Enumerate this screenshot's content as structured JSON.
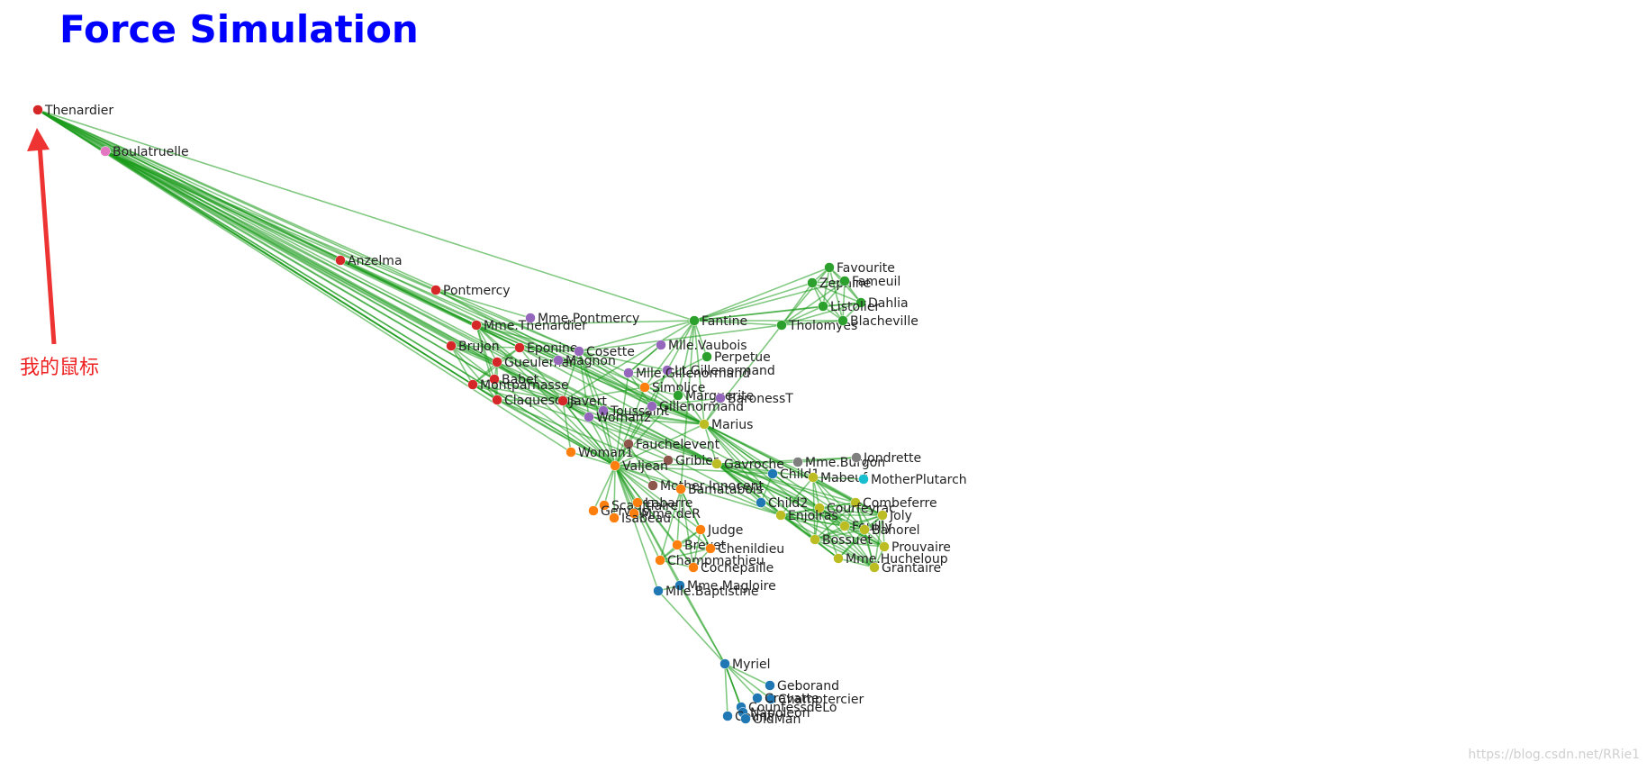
{
  "title": "Force Simulation",
  "annotation": {
    "text": "我的鼠标",
    "color": "#ee3333"
  },
  "watermark": "https://blog.csdn.net/RRie1",
  "colors": {
    "link": "#1a9a1a",
    "title": "#0000ff",
    "groups": [
      "#1f77b4",
      "#ff7f0e",
      "#2ca02c",
      "#d62728",
      "#9467bd",
      "#8c564b",
      "#e377c2",
      "#7f7f7f",
      "#bcbd22",
      "#17becf"
    ]
  },
  "nodes": [
    {
      "id": "Thenardier",
      "group": 3
    },
    {
      "id": "Boulatruelle",
      "group": 6
    },
    {
      "id": "Anzelma",
      "group": 3
    },
    {
      "id": "Pontmercy",
      "group": 3
    },
    {
      "id": "Mme.Thenardier",
      "group": 3
    },
    {
      "id": "Mme.Pontmercy",
      "group": 4
    },
    {
      "id": "Brujon",
      "group": 3
    },
    {
      "id": "Eponine",
      "group": 3
    },
    {
      "id": "Cosette",
      "group": 4
    },
    {
      "id": "Gueulemer",
      "group": 3
    },
    {
      "id": "Magnon",
      "group": 4
    },
    {
      "id": "Babet",
      "group": 3
    },
    {
      "id": "Montparnasse",
      "group": 3
    },
    {
      "id": "Claquesous",
      "group": 3
    },
    {
      "id": "Javert",
      "group": 3
    },
    {
      "id": "Toussaint",
      "group": 4
    },
    {
      "id": "Woman2",
      "group": 4
    },
    {
      "id": "Fantine",
      "group": 2
    },
    {
      "id": "Favourite",
      "group": 2
    },
    {
      "id": "Zephine",
      "group": 2
    },
    {
      "id": "Fameuil",
      "group": 2
    },
    {
      "id": "Dahlia",
      "group": 2
    },
    {
      "id": "Listolier",
      "group": 2
    },
    {
      "id": "Tholomyes",
      "group": 2
    },
    {
      "id": "Blacheville",
      "group": 2
    },
    {
      "id": "Mlle.Vaubois",
      "group": 4
    },
    {
      "id": "Perpetue",
      "group": 2
    },
    {
      "id": "Lt.Gillenormand",
      "group": 4
    },
    {
      "id": "Mlle.Gillenormand",
      "group": 4
    },
    {
      "id": "Simplice",
      "group": 1
    },
    {
      "id": "Marguerite",
      "group": 2
    },
    {
      "id": "BaronessT",
      "group": 4
    },
    {
      "id": "Gillenormand",
      "group": 4
    },
    {
      "id": "Marius",
      "group": 8
    },
    {
      "id": "Fauchelevent",
      "group": 5
    },
    {
      "id": "Woman1",
      "group": 1
    },
    {
      "id": "Gribier",
      "group": 5
    },
    {
      "id": "Valjean",
      "group": 1
    },
    {
      "id": "Gavroche",
      "group": 8
    },
    {
      "id": "Mme.Burgon",
      "group": 7
    },
    {
      "id": "Jondrette",
      "group": 7
    },
    {
      "id": "Child1",
      "group": 0
    },
    {
      "id": "Mabeuf",
      "group": 8
    },
    {
      "id": "MotherPlutarch",
      "group": 9
    },
    {
      "id": "Mother Innocent",
      "group": 5
    },
    {
      "id": "Bamatabois",
      "group": 1
    },
    {
      "id": "Child2",
      "group": 0
    },
    {
      "id": "Combeferre",
      "group": 8
    },
    {
      "id": "Courfeyrac",
      "group": 8
    },
    {
      "id": "Enjolras",
      "group": 8
    },
    {
      "id": "Joly",
      "group": 8
    },
    {
      "id": "Feuilly",
      "group": 8
    },
    {
      "id": "Bahorel",
      "group": 8
    },
    {
      "id": "Bossuet",
      "group": 8
    },
    {
      "id": "Prouvaire",
      "group": 8
    },
    {
      "id": "Mme.Hucheloup",
      "group": 8
    },
    {
      "id": "Grantaire",
      "group": 8
    },
    {
      "id": "Scaufflaire",
      "group": 1
    },
    {
      "id": "Labarre",
      "group": 1
    },
    {
      "id": "Gervais",
      "group": 1
    },
    {
      "id": "Mme.deR",
      "group": 1
    },
    {
      "id": "Isabeau",
      "group": 1
    },
    {
      "id": "Judge",
      "group": 1
    },
    {
      "id": "Brevet",
      "group": 1
    },
    {
      "id": "Chenildieu",
      "group": 1
    },
    {
      "id": "Champmathieu",
      "group": 1
    },
    {
      "id": "Cochepaille",
      "group": 1
    },
    {
      "id": "Mme.Magloire",
      "group": 0
    },
    {
      "id": "Mlle.Baptistine",
      "group": 0
    },
    {
      "id": "Myriel",
      "group": 0
    },
    {
      "id": "Geborand",
      "group": 0
    },
    {
      "id": "Champtercier",
      "group": 0
    },
    {
      "id": "Cravatte",
      "group": 0
    },
    {
      "id": "CountessdeLo",
      "group": 0
    },
    {
      "id": "Napoleon",
      "group": 0
    },
    {
      "id": "Count",
      "group": 0
    },
    {
      "id": "OldMan",
      "group": 0
    }
  ],
  "links": [
    [
      "Thenardier",
      "Boulatruelle"
    ],
    [
      "Thenardier",
      "Anzelma"
    ],
    [
      "Thenardier",
      "Mme.Thenardier"
    ],
    [
      "Thenardier",
      "Brujon"
    ],
    [
      "Thenardier",
      "Eponine"
    ],
    [
      "Thenardier",
      "Gueulemer"
    ],
    [
      "Thenardier",
      "Babet"
    ],
    [
      "Thenardier",
      "Montparnasse"
    ],
    [
      "Thenardier",
      "Claquesous"
    ],
    [
      "Thenardier",
      "Javert"
    ],
    [
      "Thenardier",
      "Cosette"
    ],
    [
      "Thenardier",
      "Valjean"
    ],
    [
      "Thenardier",
      "Marius"
    ],
    [
      "Thenardier",
      "Fantine"
    ],
    [
      "Thenardier",
      "Pontmercy"
    ],
    [
      "Thenardier",
      "Gavroche"
    ],
    [
      "Thenardier",
      "Woman1"
    ],
    [
      "Thenardier",
      "Toussaint"
    ],
    [
      "Boulatruelle",
      "Mme.Thenardier"
    ],
    [
      "Boulatruelle",
      "Brujon"
    ],
    [
      "Boulatruelle",
      "Eponine"
    ],
    [
      "Boulatruelle",
      "Gueulemer"
    ],
    [
      "Boulatruelle",
      "Montparnasse"
    ],
    [
      "Boulatruelle",
      "Claquesous"
    ],
    [
      "Boulatruelle",
      "Javert"
    ],
    [
      "Boulatruelle",
      "Valjean"
    ],
    [
      "Boulatruelle",
      "Babet"
    ],
    [
      "Boulatruelle",
      "Cosette"
    ],
    [
      "Boulatruelle",
      "Marius"
    ],
    [
      "Boulatruelle",
      "Woman2"
    ],
    [
      "Boulatruelle",
      "Gavroche"
    ],
    [
      "Boulatruelle",
      "Simplice"
    ],
    [
      "Anzelma",
      "Mme.Thenardier"
    ],
    [
      "Anzelma",
      "Eponine"
    ],
    [
      "Anzelma",
      "Marius"
    ],
    [
      "Pontmercy",
      "Mme.Pontmercy"
    ],
    [
      "Pontmercy",
      "Marius"
    ],
    [
      "Pontmercy",
      "Gillenormand"
    ],
    [
      "Mme.Thenardier",
      "Eponine"
    ],
    [
      "Mme.Thenardier",
      "Valjean"
    ],
    [
      "Mme.Thenardier",
      "Javert"
    ],
    [
      "Mme.Thenardier",
      "Cosette"
    ],
    [
      "Mme.Thenardier",
      "Fantine"
    ],
    [
      "Mme.Thenardier",
      "Babet"
    ],
    [
      "Mme.Thenardier",
      "Gueulemer"
    ],
    [
      "Mme.Thenardier",
      "Claquesous"
    ],
    [
      "Mme.Thenardier",
      "Magnon"
    ],
    [
      "Brujon",
      "Gueulemer"
    ],
    [
      "Brujon",
      "Babet"
    ],
    [
      "Brujon",
      "Montparnasse"
    ],
    [
      "Brujon",
      "Claquesous"
    ],
    [
      "Brujon",
      "Eponine"
    ],
    [
      "Brujon",
      "Gavroche"
    ],
    [
      "Eponine",
      "Marius"
    ],
    [
      "Eponine",
      "Cosette"
    ],
    [
      "Eponine",
      "Valjean"
    ],
    [
      "Eponine",
      "Gueulemer"
    ],
    [
      "Eponine",
      "Montparnasse"
    ],
    [
      "Eponine",
      "Courfeyrac"
    ],
    [
      "Gueulemer",
      "Babet"
    ],
    [
      "Gueulemer",
      "Montparnasse"
    ],
    [
      "Gueulemer",
      "Claquesous"
    ],
    [
      "Gueulemer",
      "Javert"
    ],
    [
      "Gueulemer",
      "Valjean"
    ],
    [
      "Gueulemer",
      "Gavroche"
    ],
    [
      "Babet",
      "Montparnasse"
    ],
    [
      "Babet",
      "Claquesous"
    ],
    [
      "Babet",
      "Javert"
    ],
    [
      "Babet",
      "Valjean"
    ],
    [
      "Babet",
      "Gavroche"
    ],
    [
      "Montparnasse",
      "Claquesous"
    ],
    [
      "Montparnasse",
      "Javert"
    ],
    [
      "Montparnasse",
      "Valjean"
    ],
    [
      "Montparnasse",
      "Gavroche"
    ],
    [
      "Claquesous",
      "Javert"
    ],
    [
      "Claquesous",
      "Valjean"
    ],
    [
      "Claquesous",
      "Enjolras"
    ],
    [
      "Javert",
      "Valjean"
    ],
    [
      "Javert",
      "Fantine"
    ],
    [
      "Javert",
      "Simplice"
    ],
    [
      "Javert",
      "Woman1"
    ],
    [
      "Javert",
      "Fauchelevent"
    ],
    [
      "Javert",
      "Marius"
    ],
    [
      "Javert",
      "Enjolras"
    ],
    [
      "Javert",
      "Gavroche"
    ],
    [
      "Javert",
      "Toussaint"
    ],
    [
      "Javert",
      "Bamatabois"
    ],
    [
      "Javert",
      "Cosette"
    ],
    [
      "Cosette",
      "Valjean"
    ],
    [
      "Cosette",
      "Marius"
    ],
    [
      "Cosette",
      "Woman2"
    ],
    [
      "Cosette",
      "Gillenormand"
    ],
    [
      "Cosette",
      "Mlle.Gillenormand"
    ],
    [
      "Cosette",
      "Lt.Gillenormand"
    ],
    [
      "Cosette",
      "Toussaint"
    ],
    [
      "Cosette",
      "Tholomyes"
    ],
    [
      "Cosette",
      "Fantine"
    ],
    [
      "Magnon",
      "Mme.Thenardier"
    ],
    [
      "Magnon",
      "Gillenormand"
    ],
    [
      "Fantine",
      "Favourite"
    ],
    [
      "Fantine",
      "Zephine"
    ],
    [
      "Fantine",
      "Fameuil"
    ],
    [
      "Fantine",
      "Dahlia"
    ],
    [
      "Fantine",
      "Listolier"
    ],
    [
      "Fantine",
      "Tholomyes"
    ],
    [
      "Fantine",
      "Blacheville"
    ],
    [
      "Fantine",
      "Marguerite"
    ],
    [
      "Fantine",
      "Valjean"
    ],
    [
      "Fantine",
      "Simplice"
    ],
    [
      "Fantine",
      "Bamatabois"
    ],
    [
      "Fantine",
      "Perpetue"
    ],
    [
      "Tholomyes",
      "Favourite"
    ],
    [
      "Tholomyes",
      "Zephine"
    ],
    [
      "Tholomyes",
      "Fameuil"
    ],
    [
      "Tholomyes",
      "Dahlia"
    ],
    [
      "Tholomyes",
      "Listolier"
    ],
    [
      "Tholomyes",
      "Blacheville"
    ],
    [
      "Favourite",
      "Zephine"
    ],
    [
      "Favourite",
      "Fameuil"
    ],
    [
      "Favourite",
      "Dahlia"
    ],
    [
      "Favourite",
      "Listolier"
    ],
    [
      "Favourite",
      "Blacheville"
    ],
    [
      "Zephine",
      "Fameuil"
    ],
    [
      "Zephine",
      "Dahlia"
    ],
    [
      "Zephine",
      "Listolier"
    ],
    [
      "Zephine",
      "Blacheville"
    ],
    [
      "Fameuil",
      "Dahlia"
    ],
    [
      "Fameuil",
      "Listolier"
    ],
    [
      "Fameuil",
      "Blacheville"
    ],
    [
      "Dahlia",
      "Listolier"
    ],
    [
      "Dahlia",
      "Blacheville"
    ],
    [
      "Listolier",
      "Blacheville"
    ],
    [
      "Mlle.Vaubois",
      "Mlle.Gillenormand"
    ],
    [
      "Perpetue",
      "Simplice"
    ],
    [
      "Lt.Gillenormand",
      "Mlle.Gillenormand"
    ],
    [
      "Lt.Gillenormand",
      "Gillenormand"
    ],
    [
      "Lt.Gillenormand",
      "Marius"
    ],
    [
      "Mlle.Gillenormand",
      "Gillenormand"
    ],
    [
      "Mlle.Gillenormand",
      "Marius"
    ],
    [
      "Mlle.Gillenormand",
      "Valjean"
    ],
    [
      "Mlle.Gillenormand",
      "Mlle.Vaubois"
    ],
    [
      "Simplice",
      "Valjean"
    ],
    [
      "Simplice",
      "Marguerite"
    ],
    [
      "Marguerite",
      "Valjean"
    ],
    [
      "BaronessT",
      "Gillenormand"
    ],
    [
      "BaronessT",
      "Marius"
    ],
    [
      "Gillenormand",
      "Marius"
    ],
    [
      "Gillenormand",
      "Valjean"
    ],
    [
      "Marius",
      "Valjean"
    ],
    [
      "Marius",
      "Gavroche"
    ],
    [
      "Marius",
      "Mabeuf"
    ],
    [
      "Marius",
      "Enjolras"
    ],
    [
      "Marius",
      "Combeferre"
    ],
    [
      "Marius",
      "Courfeyrac"
    ],
    [
      "Marius",
      "Feuilly"
    ],
    [
      "Marius",
      "Bahorel"
    ],
    [
      "Marius",
      "Bossuet"
    ],
    [
      "Marius",
      "Joly"
    ],
    [
      "Marius",
      "Grantaire"
    ],
    [
      "Marius",
      "Woman2"
    ],
    [
      "Marius",
      "Toussaint"
    ],
    [
      "Marius",
      "Tholomyes"
    ],
    [
      "Marius",
      "Fantine"
    ],
    [
      "Fauchelevent",
      "Valjean"
    ],
    [
      "Fauchelevent",
      "Mother Innocent"
    ],
    [
      "Fauchelevent",
      "Gribier"
    ],
    [
      "Woman1",
      "Valjean"
    ],
    [
      "Woman2",
      "Valjean"
    ],
    [
      "Toussaint",
      "Valjean"
    ],
    [
      "Valjean",
      "Mme.Magloire"
    ],
    [
      "Valjean",
      "Mlle.Baptistine"
    ],
    [
      "Valjean",
      "Myriel"
    ],
    [
      "Valjean",
      "Labarre"
    ],
    [
      "Valjean",
      "Mme.deR"
    ],
    [
      "Valjean",
      "Isabeau"
    ],
    [
      "Valjean",
      "Gervais"
    ],
    [
      "Valjean",
      "Bamatabois"
    ],
    [
      "Valjean",
      "Judge"
    ],
    [
      "Valjean",
      "Champmathieu"
    ],
    [
      "Valjean",
      "Brevet"
    ],
    [
      "Valjean",
      "Chenildieu"
    ],
    [
      "Valjean",
      "Cochepaille"
    ],
    [
      "Valjean",
      "Scaufflaire"
    ],
    [
      "Valjean",
      "Gavroche"
    ],
    [
      "Valjean",
      "Enjolras"
    ],
    [
      "Valjean",
      "Mother Innocent"
    ],
    [
      "Valjean",
      "Child1"
    ],
    [
      "Valjean",
      "Gribier"
    ],
    [
      "Gavroche",
      "Mme.Burgon"
    ],
    [
      "Gavroche",
      "Jondrette"
    ],
    [
      "Gavroche",
      "Child1"
    ],
    [
      "Gavroche",
      "Child2"
    ],
    [
      "Gavroche",
      "Mabeuf"
    ],
    [
      "Gavroche",
      "Enjolras"
    ],
    [
      "Gavroche",
      "Combeferre"
    ],
    [
      "Gavroche",
      "Courfeyrac"
    ],
    [
      "Gavroche",
      "Feuilly"
    ],
    [
      "Gavroche",
      "Bahorel"
    ],
    [
      "Gavroche",
      "Bossuet"
    ],
    [
      "Gavroche",
      "Joly"
    ],
    [
      "Gavroche",
      "Grantaire"
    ],
    [
      "Gavroche",
      "Prouvaire"
    ],
    [
      "Gavroche",
      "Mme.Hucheloup"
    ],
    [
      "Mme.Burgon",
      "Jondrette"
    ],
    [
      "Child1",
      "Child2"
    ],
    [
      "Mabeuf",
      "MotherPlutarch"
    ],
    [
      "Mabeuf",
      "Enjolras"
    ],
    [
      "Mabeuf",
      "Combeferre"
    ],
    [
      "Mabeuf",
      "Courfeyrac"
    ],
    [
      "Mabeuf",
      "Feuilly"
    ],
    [
      "Mabeuf",
      "Bahorel"
    ],
    [
      "Mabeuf",
      "Bossuet"
    ],
    [
      "Mabeuf",
      "Joly"
    ],
    [
      "Enjolras",
      "Combeferre"
    ],
    [
      "Enjolras",
      "Courfeyrac"
    ],
    [
      "Enjolras",
      "Feuilly"
    ],
    [
      "Enjolras",
      "Bahorel"
    ],
    [
      "Enjolras",
      "Bossuet"
    ],
    [
      "Enjolras",
      "Joly"
    ],
    [
      "Enjolras",
      "Grantaire"
    ],
    [
      "Enjolras",
      "Prouvaire"
    ],
    [
      "Enjolras",
      "Mme.Hucheloup"
    ],
    [
      "Combeferre",
      "Courfeyrac"
    ],
    [
      "Combeferre",
      "Feuilly"
    ],
    [
      "Combeferre",
      "Bahorel"
    ],
    [
      "Combeferre",
      "Bossuet"
    ],
    [
      "Combeferre",
      "Joly"
    ],
    [
      "Combeferre",
      "Grantaire"
    ],
    [
      "Combeferre",
      "Prouvaire"
    ],
    [
      "Courfeyrac",
      "Feuilly"
    ],
    [
      "Courfeyrac",
      "Bahorel"
    ],
    [
      "Courfeyrac",
      "Bossuet"
    ],
    [
      "Courfeyrac",
      "Joly"
    ],
    [
      "Courfeyrac",
      "Grantaire"
    ],
    [
      "Courfeyrac",
      "Prouvaire"
    ],
    [
      "Courfeyrac",
      "Mme.Hucheloup"
    ],
    [
      "Feuilly",
      "Bahorel"
    ],
    [
      "Feuilly",
      "Bossuet"
    ],
    [
      "Feuilly",
      "Joly"
    ],
    [
      "Feuilly",
      "Grantaire"
    ],
    [
      "Feuilly",
      "Prouvaire"
    ],
    [
      "Bahorel",
      "Bossuet"
    ],
    [
      "Bahorel",
      "Joly"
    ],
    [
      "Bahorel",
      "Grantaire"
    ],
    [
      "Bahorel",
      "Prouvaire"
    ],
    [
      "Bahorel",
      "Mme.Hucheloup"
    ],
    [
      "Bossuet",
      "Joly"
    ],
    [
      "Bossuet",
      "Grantaire"
    ],
    [
      "Bossuet",
      "Prouvaire"
    ],
    [
      "Bossuet",
      "Mme.Hucheloup"
    ],
    [
      "Joly",
      "Grantaire"
    ],
    [
      "Joly",
      "Prouvaire"
    ],
    [
      "Joly",
      "Mme.Hucheloup"
    ],
    [
      "Grantaire",
      "Prouvaire"
    ],
    [
      "Grantaire",
      "Mme.Hucheloup"
    ],
    [
      "Bamatabois",
      "Judge"
    ],
    [
      "Bamatabois",
      "Champmathieu"
    ],
    [
      "Bamatabois",
      "Brevet"
    ],
    [
      "Bamatabois",
      "Chenildieu"
    ],
    [
      "Bamatabois",
      "Cochepaille"
    ],
    [
      "Judge",
      "Champmathieu"
    ],
    [
      "Judge",
      "Brevet"
    ],
    [
      "Judge",
      "Chenildieu"
    ],
    [
      "Judge",
      "Cochepaille"
    ],
    [
      "Champmathieu",
      "Brevet"
    ],
    [
      "Champmathieu",
      "Chenildieu"
    ],
    [
      "Champmathieu",
      "Cochepaille"
    ],
    [
      "Brevet",
      "Chenildieu"
    ],
    [
      "Brevet",
      "Cochepaille"
    ],
    [
      "Chenildieu",
      "Cochepaille"
    ],
    [
      "Mme.Magloire",
      "Mlle.Baptistine"
    ],
    [
      "Mme.Magloire",
      "Myriel"
    ],
    [
      "Mlle.Baptistine",
      "Myriel"
    ],
    [
      "Myriel",
      "Geborand"
    ],
    [
      "Myriel",
      "Champtercier"
    ],
    [
      "Myriel",
      "Cravatte"
    ],
    [
      "Myriel",
      "CountessdeLo"
    ],
    [
      "Myriel",
      "Napoleon"
    ],
    [
      "Myriel",
      "Count"
    ],
    [
      "Myriel",
      "OldMan"
    ]
  ]
}
